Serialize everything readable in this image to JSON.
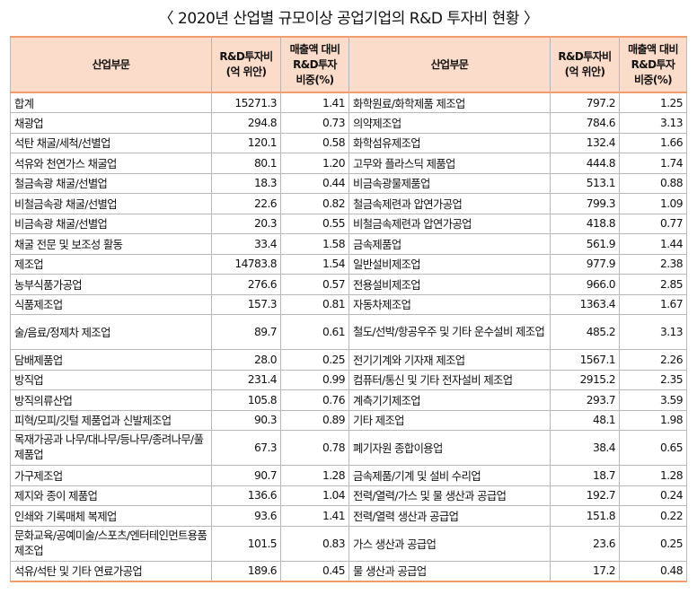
{
  "title": "〈 2020년 산업별 규모이상 공업기업의 R&D 투자비 현황 〉",
  "headers": {
    "industry": "산업부문",
    "rd_line1": "R&D투자비",
    "rd_line2": "(억 위안)",
    "ratio_line1": "매출액 대비",
    "ratio_line2": "R&D투자",
    "ratio_line3": "비중(%)"
  },
  "rows": [
    {
      "left": {
        "name": "합계",
        "rd": "15271.3",
        "ratio": "1.41"
      },
      "right": {
        "name": "화학원료/화학제품 제조업",
        "rd": "797.2",
        "ratio": "1.25"
      }
    },
    {
      "left": {
        "name": "채광업",
        "rd": "294.8",
        "ratio": "0.73"
      },
      "right": {
        "name": "의약제조업",
        "rd": "784.6",
        "ratio": "3.13"
      }
    },
    {
      "left": {
        "name": "석탄 채굴/세척/선별업",
        "rd": "120.1",
        "ratio": "0.58"
      },
      "right": {
        "name": "화학섬유제조업",
        "rd": "132.4",
        "ratio": "1.66"
      }
    },
    {
      "left": {
        "name": "석유와 천연가스 채굴업",
        "rd": "80.1",
        "ratio": "1.20"
      },
      "right": {
        "name": "고무와 플라스딕 제품업",
        "rd": "444.8",
        "ratio": "1.74"
      }
    },
    {
      "left": {
        "name": "철금속광 채굴/선별업",
        "rd": "18.3",
        "ratio": "0.44"
      },
      "right": {
        "name": "비금속광물제품업",
        "rd": "513.1",
        "ratio": "0.88"
      }
    },
    {
      "left": {
        "name": "비철금속광 채굴/선별업",
        "rd": "22.6",
        "ratio": "0.82"
      },
      "right": {
        "name": "철금속제련과 압연가공업",
        "rd": "799.3",
        "ratio": "1.09"
      }
    },
    {
      "left": {
        "name": "비금속광 채굴/선별업",
        "rd": "20.3",
        "ratio": "0.55"
      },
      "right": {
        "name": "비철금속제련과 압연가공업",
        "rd": "418.8",
        "ratio": "0.77"
      }
    },
    {
      "left": {
        "name": "채굴 전문 및 보조성 활동",
        "rd": "33.4",
        "ratio": "1.58"
      },
      "right": {
        "name": "금속제품업",
        "rd": "561.9",
        "ratio": "1.44"
      }
    },
    {
      "left": {
        "name": "제조업",
        "rd": "14783.8",
        "ratio": "1.54"
      },
      "right": {
        "name": "일반설비제조업",
        "rd": "977.9",
        "ratio": "2.38"
      }
    },
    {
      "left": {
        "name": "농부식품가공업",
        "rd": "276.6",
        "ratio": "0.57"
      },
      "right": {
        "name": "전용설비제조업",
        "rd": "966.0",
        "ratio": "2.85"
      }
    },
    {
      "left": {
        "name": "식품제조업",
        "rd": "157.3",
        "ratio": "0.81"
      },
      "right": {
        "name": "자동차제조업",
        "rd": "1363.4",
        "ratio": "1.67"
      }
    },
    {
      "left": {
        "name": "술/음료/정제차 제조업",
        "rd": "89.7",
        "ratio": "0.61"
      },
      "right": {
        "name": "철도/선박/항공우주 및 기타 운수설비 제조업",
        "rd": "485.2",
        "ratio": "3.13"
      }
    },
    {
      "left": {
        "name": "담배제품업",
        "rd": "28.0",
        "ratio": "0.25"
      },
      "right": {
        "name": "전기기계와 기자재 제조업",
        "rd": "1567.1",
        "ratio": "2.26"
      }
    },
    {
      "left": {
        "name": "방직업",
        "rd": "231.4",
        "ratio": "0.99"
      },
      "right": {
        "name": "컴퓨터/통신 및 기타 전자설비 제조업",
        "rd": "2915.2",
        "ratio": "2.35"
      }
    },
    {
      "left": {
        "name": "방직의류산업",
        "rd": "105.8",
        "ratio": "0.76"
      },
      "right": {
        "name": "계측기기제조업",
        "rd": "293.7",
        "ratio": "3.59"
      }
    },
    {
      "left": {
        "name": "피혁/모피/깃털 제품업과 신발제조업",
        "rd": "90.3",
        "ratio": "0.89"
      },
      "right": {
        "name": "기타 제조업",
        "rd": "48.1",
        "ratio": "1.98"
      }
    },
    {
      "left": {
        "name": "목재가공과 나무/대나무/등나무/종려나무/풀 제품업",
        "rd": "67.3",
        "ratio": "0.78"
      },
      "right": {
        "name": "폐기자원 종합이용업",
        "rd": "38.4",
        "ratio": "0.65"
      }
    },
    {
      "left": {
        "name": "가구제조업",
        "rd": "90.7",
        "ratio": "1.28"
      },
      "right": {
        "name": "금속제품/기계 및 설비 수리업",
        "rd": "18.7",
        "ratio": "1.28"
      }
    },
    {
      "left": {
        "name": "제지와 종이 제품업",
        "rd": "136.6",
        "ratio": "1.04"
      },
      "right": {
        "name": "전력/열력/가스 및 물 생산과 공급업",
        "rd": "192.7",
        "ratio": "0.24"
      }
    },
    {
      "left": {
        "name": "인쇄와 기록매체 복제업",
        "rd": "93.6",
        "ratio": "1.41"
      },
      "right": {
        "name": "전력/열력 생산과 공급업",
        "rd": "151.8",
        "ratio": "0.22"
      }
    },
    {
      "left": {
        "name": "문화교육/공예미술/스포츠/엔터테인먼트용품 제조업",
        "rd": "101.5",
        "ratio": "0.83"
      },
      "right": {
        "name": "가스 생산과 공급업",
        "rd": "23.6",
        "ratio": "0.25"
      }
    },
    {
      "left": {
        "name": "석유/석탄 및 기타 연료가공업",
        "rd": "189.6",
        "ratio": "0.45"
      },
      "right": {
        "name": "물 생산과 공급업",
        "rd": "17.2",
        "ratio": "0.48"
      }
    }
  ]
}
